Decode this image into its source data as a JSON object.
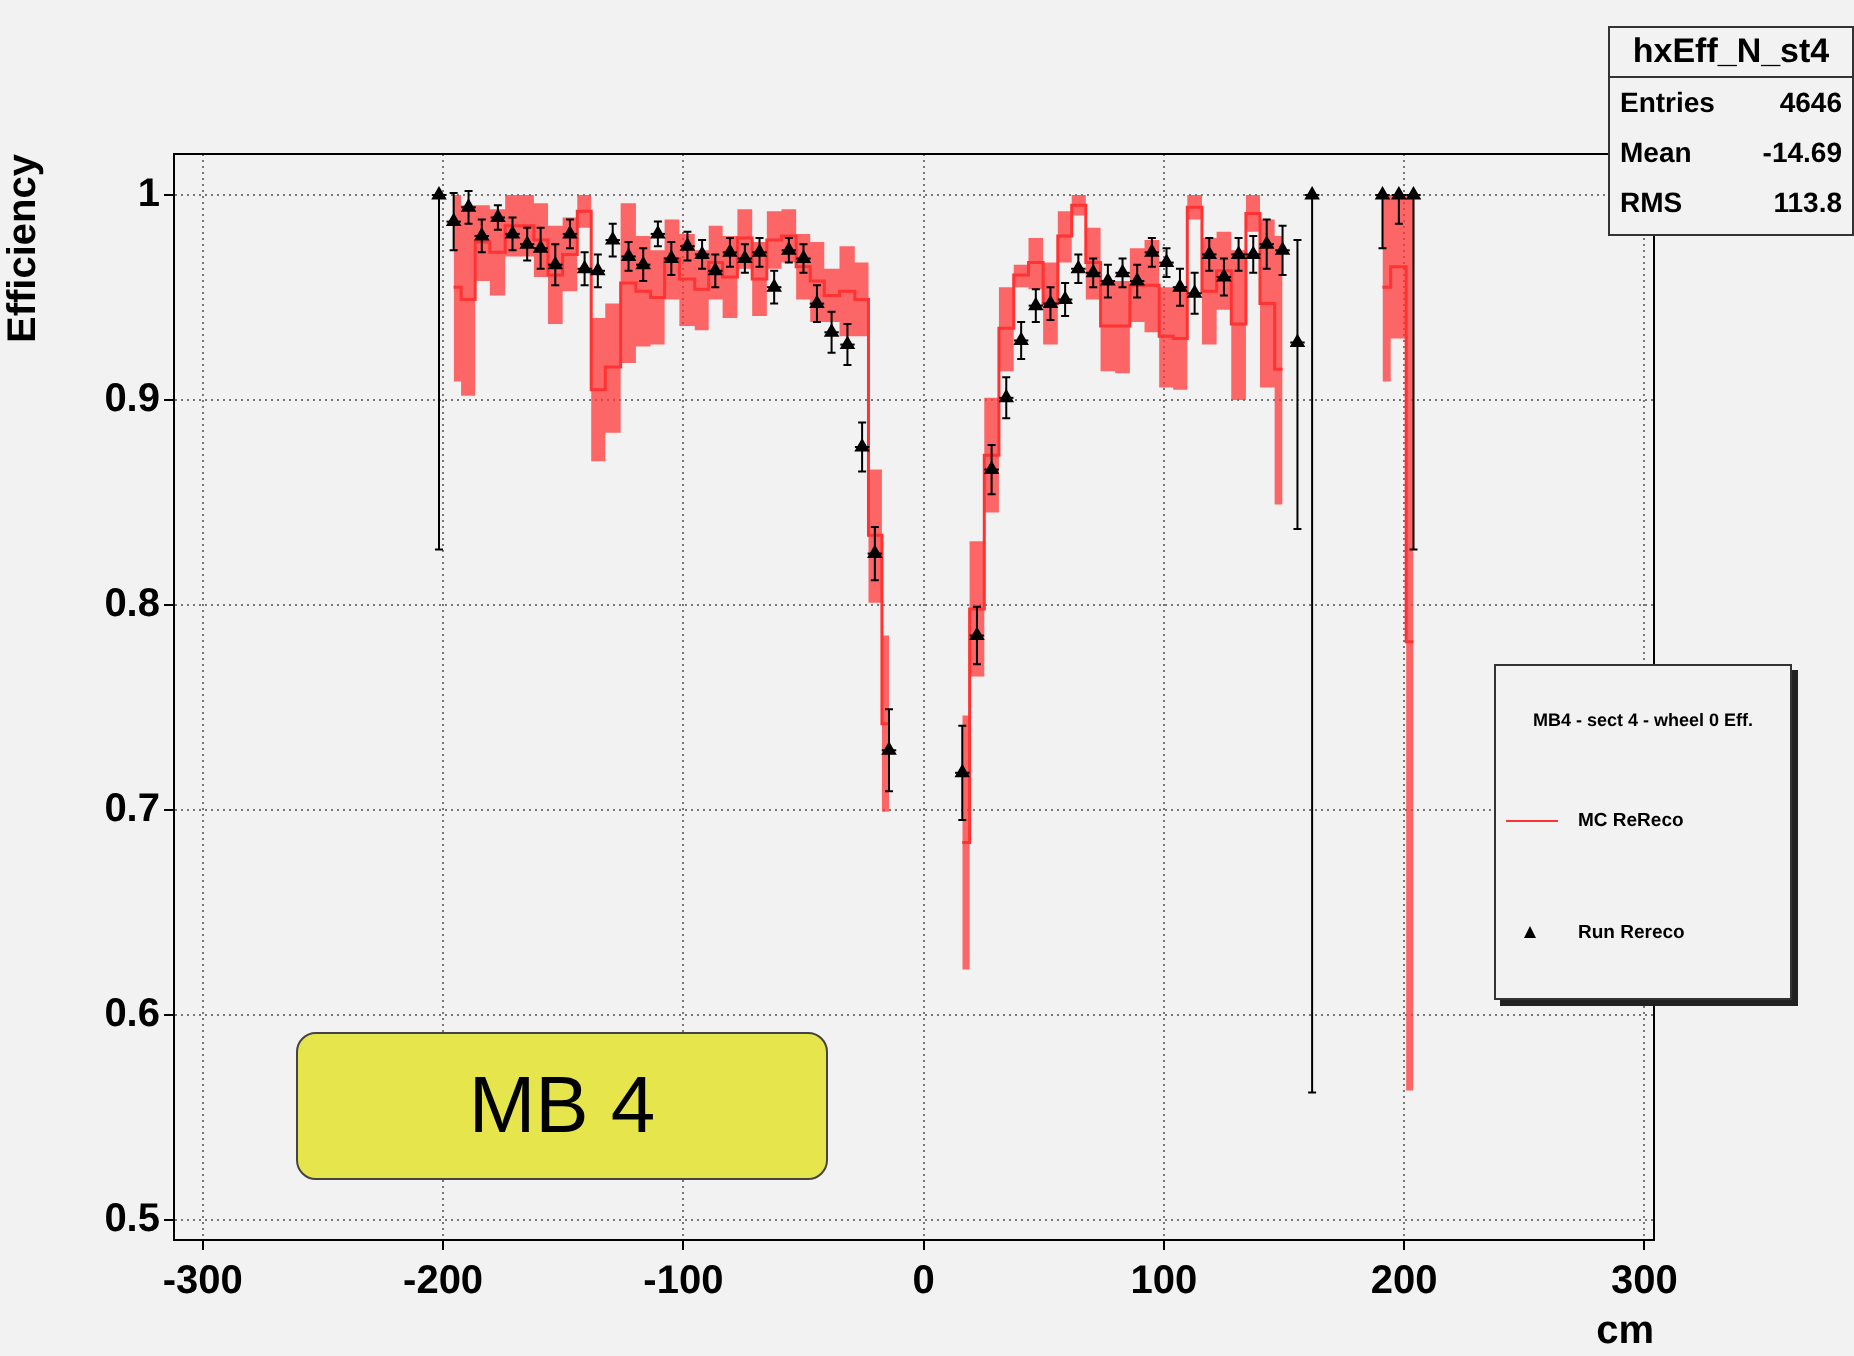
{
  "chart_data": {
    "type": "scatter",
    "xlabel": "cm",
    "ylabel": "Efficiency",
    "legend_title": "MB4 - sect 4 - wheel 0 Eff.",
    "annotations": [
      "hxEff_N_st4",
      "Entries",
      "4646",
      "Mean",
      "-14.69",
      "RMS",
      "113.8",
      "MB 4"
    ],
    "xlim": [
      -312,
      304
    ],
    "xticks": [
      -300,
      -200,
      -100,
      0,
      100,
      200,
      300
    ],
    "ylim": [
      0.49,
      1.02
    ],
    "yticks": [
      0.5,
      0.6,
      0.7,
      0.8,
      0.9,
      1
    ],
    "grid": true,
    "legend": "right",
    "series": [
      {
        "name": "MC ReReco",
        "type": "step",
        "color": "#ff3333",
        "x": [
          -195.6,
          -189.4,
          -183.9,
          -177.2,
          -171.1,
          -165,
          -159.4,
          -153.3,
          -147.2,
          -141.1,
          -135.6,
          -129.4,
          -122.8,
          -116.7,
          -110.6,
          -105,
          -98.3,
          -92.2,
          -86.7,
          -80.6,
          -74.4,
          -68.3,
          -62.2,
          -56.1,
          -50,
          -44.4,
          -38.3,
          -31.7,
          -25.6,
          -20.3,
          -14.4,
          0,
          16.1,
          22.2,
          28.3,
          34.4,
          40.6,
          46.7,
          52.8,
          58.9,
          64.4,
          70.6,
          76.7,
          82.8,
          88.9,
          95,
          101.1,
          106.7,
          112.8,
          118.9,
          125,
          131.1,
          137.2,
          142.8,
          149.4,
          170,
          191,
          197.8,
          203.9
        ],
        "values": [
          0.955,
          0.949,
          0.977,
          0.972,
          0.985,
          0.985,
          0.978,
          0.961,
          0.971,
          0.992,
          0.905,
          0.916,
          0.957,
          0.953,
          0.95,
          0.969,
          0.959,
          0.954,
          0.967,
          0.96,
          0.979,
          0.959,
          0.978,
          0.98,
          0.965,
          0.958,
          0.951,
          0.953,
          0.949,
          0.834,
          0.742,
          null,
          0.684,
          0.798,
          0.873,
          0.935,
          0.961,
          0.967,
          0.947,
          0.98,
          0.995,
          0.967,
          0.936,
          0.936,
          0.956,
          0.956,
          0.931,
          0.93,
          0.994,
          0.953,
          0.963,
          0.937,
          0.991,
          0.947,
          0.915,
          null,
          0.955,
          0.965,
          0.782
        ],
        "lower": [
          0.909,
          0.902,
          0.958,
          0.951,
          0.97,
          0.97,
          0.96,
          0.937,
          0.953,
          0.984,
          0.87,
          0.884,
          0.918,
          0.926,
          0.927,
          0.949,
          0.936,
          0.934,
          0.949,
          0.94,
          0.964,
          0.941,
          0.964,
          0.967,
          0.949,
          0.938,
          0.938,
          0.931,
          0.931,
          0.801,
          0.699,
          null,
          0.622,
          0.765,
          0.845,
          0.914,
          0.955,
          0.954,
          0.927,
          0.967,
          0.99,
          0.949,
          0.914,
          0.913,
          0.938,
          0.933,
          0.906,
          0.905,
          0.988,
          0.927,
          0.944,
          0.9,
          0.982,
          0.906,
          0.849,
          null,
          0.909,
          0.93,
          0.563
        ],
        "upper": [
          1.0,
          0.995,
          0.995,
          0.993,
          1.0,
          1.0,
          0.996,
          0.985,
          0.989,
          1.0,
          0.94,
          0.947,
          0.996,
          0.98,
          0.973,
          0.988,
          0.981,
          0.973,
          0.985,
          0.98,
          0.993,
          0.977,
          0.992,
          0.993,
          0.981,
          0.977,
          0.964,
          0.975,
          0.967,
          0.866,
          0.785,
          null,
          0.746,
          0.831,
          0.901,
          0.955,
          0.966,
          0.979,
          0.967,
          0.992,
          1.0,
          0.984,
          0.958,
          0.958,
          0.974,
          0.978,
          0.955,
          0.955,
          1.0,
          0.979,
          0.982,
          0.973,
          1.0,
          0.988,
          0.98,
          null,
          1.0,
          1.0,
          1.0
        ]
      },
      {
        "name": "Run Rereco",
        "type": "scatter",
        "color": "#000000",
        "marker": "triangle",
        "x": [
          -201.7,
          -195.6,
          -189.4,
          -183.9,
          -177.2,
          -171.1,
          -165,
          -159.4,
          -153.3,
          -147.2,
          -141.1,
          -135.6,
          -129.4,
          -122.8,
          -116.7,
          -110.6,
          -105,
          -98.3,
          -92.2,
          -86.7,
          -80.6,
          -74.4,
          -68.3,
          -62.2,
          -56.1,
          -50,
          -44.4,
          -38.3,
          -31.7,
          -25.6,
          -20.3,
          -14.4,
          16.1,
          22.2,
          28.3,
          34.4,
          40.6,
          46.7,
          52.8,
          58.9,
          64.4,
          70.6,
          76.7,
          82.8,
          88.9,
          95,
          101.1,
          106.7,
          112.8,
          118.9,
          125,
          131.1,
          137.2,
          142.8,
          149.4,
          155.6,
          161.7,
          191,
          197.8,
          203.9
        ],
        "values": [
          1.0,
          0.987,
          0.994,
          0.98,
          0.989,
          0.981,
          0.976,
          0.974,
          0.966,
          0.981,
          0.964,
          0.963,
          0.978,
          0.97,
          0.966,
          0.981,
          0.969,
          0.975,
          0.971,
          0.963,
          0.972,
          0.969,
          0.972,
          0.955,
          0.973,
          0.969,
          0.947,
          0.933,
          0.927,
          0.877,
          0.825,
          0.729,
          0.718,
          0.785,
          0.866,
          0.901,
          0.929,
          0.946,
          0.947,
          0.949,
          0.964,
          0.962,
          0.958,
          0.962,
          0.958,
          0.972,
          0.967,
          0.955,
          0.952,
          0.971,
          0.96,
          0.971,
          0.971,
          0.976,
          0.973,
          0.928,
          1.0,
          1.0,
          1.0,
          1.0
        ],
        "errors": [
          [
            0.827,
            1.0
          ],
          0.014,
          0.008,
          0.008,
          0.006,
          0.008,
          0.008,
          0.01,
          0.01,
          0.007,
          0.008,
          0.008,
          0.008,
          0.007,
          0.008,
          0.006,
          0.008,
          0.007,
          0.007,
          0.008,
          0.007,
          0.007,
          0.007,
          0.008,
          0.006,
          0.007,
          0.009,
          0.01,
          0.01,
          0.012,
          0.013,
          0.02,
          0.023,
          0.014,
          0.012,
          0.01,
          0.009,
          0.008,
          0.008,
          0.008,
          0.007,
          0.007,
          0.008,
          0.007,
          0.008,
          0.007,
          0.007,
          0.009,
          0.01,
          0.008,
          0.009,
          0.008,
          0.009,
          0.012,
          0.012,
          [
            0.837,
            0.978
          ],
          [
            0.562,
            1.0
          ],
          [
            0.974,
            1.0
          ],
          [
            0.986,
            1.0
          ],
          [
            0.827,
            1.0
          ]
        ],
        "xerrors": [
          3,
          3,
          3,
          3,
          3,
          3,
          3,
          3,
          3,
          3,
          3,
          3,
          3,
          3,
          3,
          3,
          3,
          3,
          3,
          3,
          3,
          3,
          3,
          3,
          3,
          3,
          3,
          3,
          3,
          3,
          3,
          3,
          3,
          3,
          3,
          3,
          3,
          3,
          3,
          3,
          3,
          3,
          3,
          3,
          3,
          3,
          3,
          3,
          3,
          3,
          3,
          3,
          3,
          3,
          3,
          3,
          3,
          3,
          3,
          3
        ]
      }
    ]
  }
}
